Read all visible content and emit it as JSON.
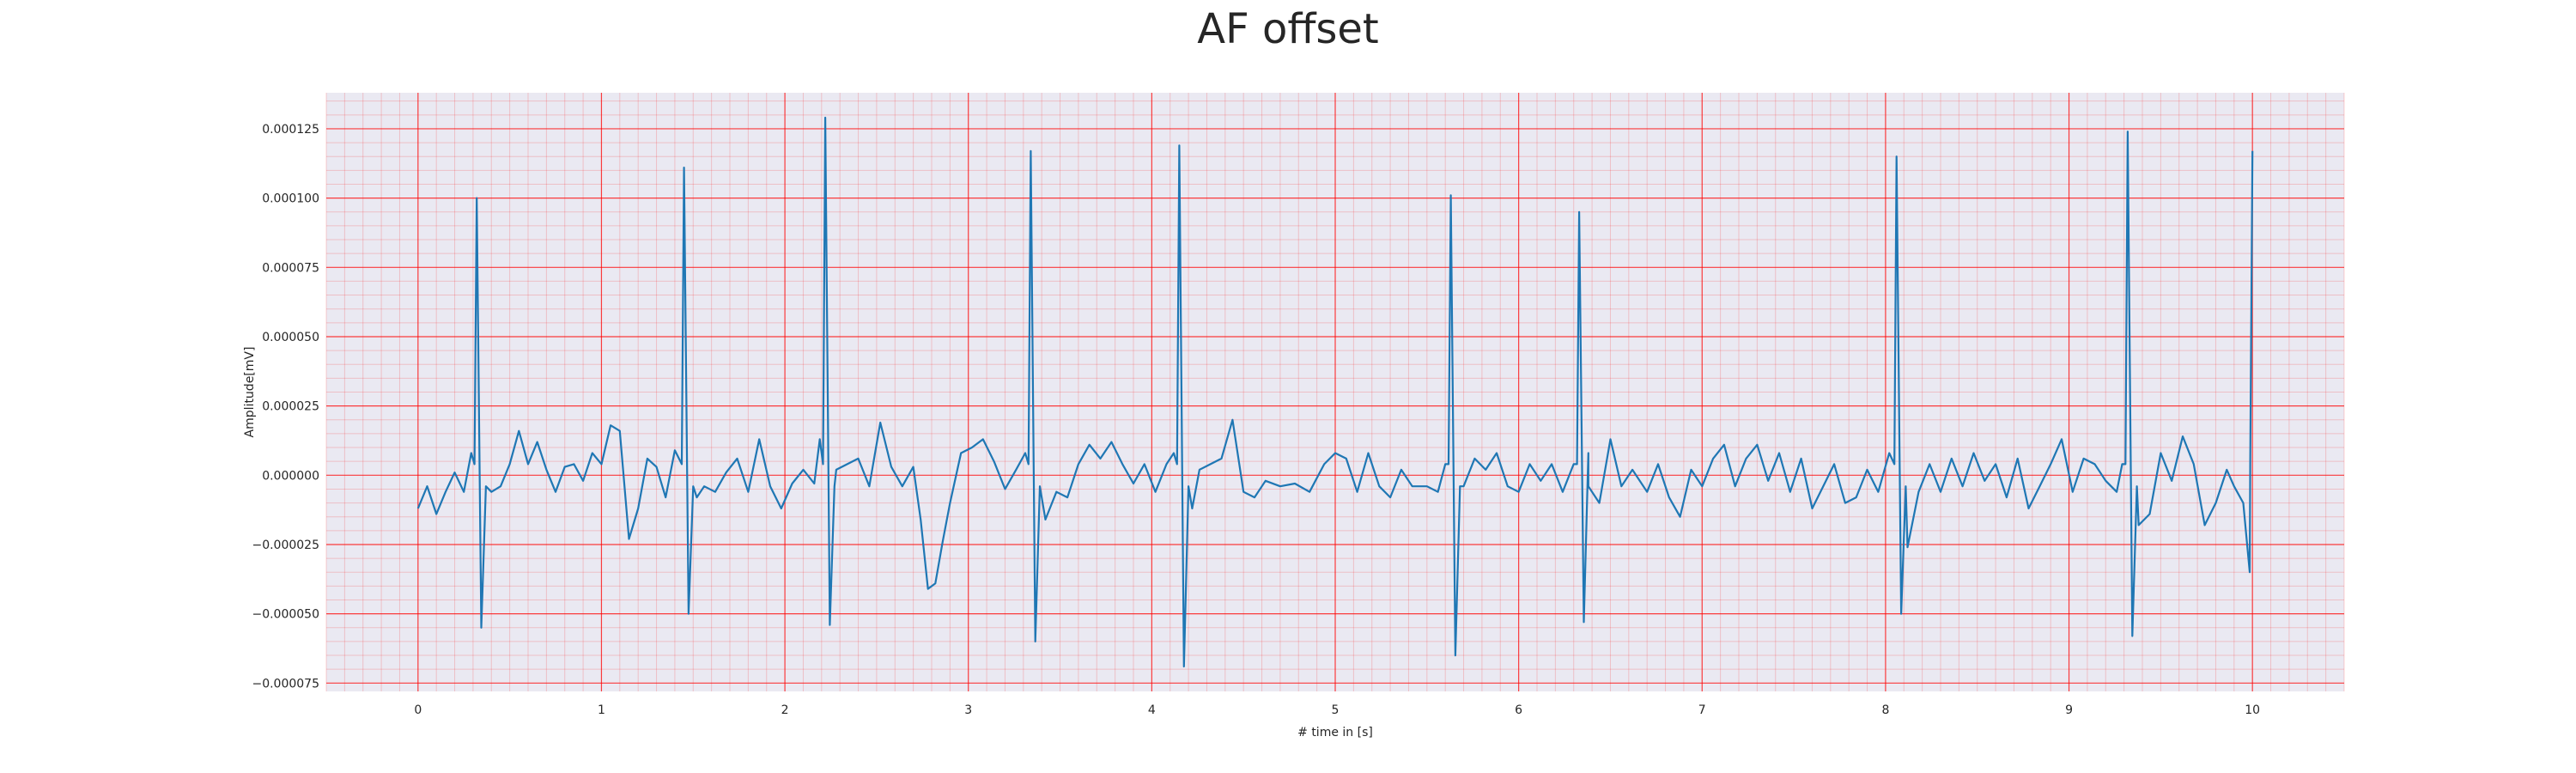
{
  "chart_data": {
    "type": "line",
    "title": "AF offset",
    "xlabel": "# time in [s]",
    "ylabel": "Amplitude[mV]",
    "xlim": [
      -0.5,
      10.5
    ],
    "ylim": [
      -7.8e-05,
      0.000138
    ],
    "x_ticks": [
      0,
      1,
      2,
      3,
      4,
      5,
      6,
      7,
      8,
      9,
      10
    ],
    "x_tick_labels": [
      "0",
      "1",
      "2",
      "3",
      "4",
      "5",
      "6",
      "7",
      "8",
      "9",
      "10"
    ],
    "y_ticks": [
      -7.5e-05,
      -5e-05,
      -2.5e-05,
      0,
      2.5e-05,
      5e-05,
      7.5e-05,
      0.0001,
      0.000125
    ],
    "y_tick_labels": [
      "−0.000075",
      "−0.000050",
      "−0.000025",
      "0.000000",
      "0.000025",
      "0.000050",
      "0.000075",
      "0.000100",
      "0.000125"
    ],
    "grid": true,
    "grid_style": "ECG paper: major and minor red gridlines",
    "line_color": "#1f77b4",
    "plot_background": "#eae9f2",
    "grid_color": "#ff0000",
    "r_peaks": [
      {
        "t": 0.32,
        "peak": 0.0001,
        "trough": -5.5e-05
      },
      {
        "t": 1.45,
        "peak": 0.000111,
        "trough": -5e-05
      },
      {
        "t": 2.22,
        "peak": 0.000129,
        "trough": -5.4e-05
      },
      {
        "t": 3.34,
        "peak": 0.000117,
        "trough": -6e-05
      },
      {
        "t": 4.15,
        "peak": 0.000119,
        "trough": -6.9e-05
      },
      {
        "t": 5.63,
        "peak": 0.000101,
        "trough": -6.5e-05
      },
      {
        "t": 6.33,
        "peak": 9.5e-05,
        "trough": -5.3e-05
      },
      {
        "t": 8.06,
        "peak": 0.000115,
        "trough": -5e-05
      },
      {
        "t": 9.32,
        "peak": 0.000124,
        "trough": -5.8e-05
      },
      {
        "t": 10.0,
        "peak": 0.000117,
        "trough": -3.5e-05
      }
    ],
    "baseline_points": [
      [
        0.0,
        -1.2e-05
      ],
      [
        0.05,
        -4e-06
      ],
      [
        0.1,
        -1.4e-05
      ],
      [
        0.15,
        -6e-06
      ],
      [
        0.2,
        1e-06
      ],
      [
        0.25,
        -6e-06
      ],
      [
        0.29,
        8e-06
      ],
      [
        0.4,
        -6e-06
      ],
      [
        0.45,
        -4e-06
      ],
      [
        0.5,
        4e-06
      ],
      [
        0.55,
        1.6e-05
      ],
      [
        0.6,
        4e-06
      ],
      [
        0.65,
        1.2e-05
      ],
      [
        0.7,
        2e-06
      ],
      [
        0.75,
        -6e-06
      ],
      [
        0.8,
        3e-06
      ],
      [
        0.85,
        4e-06
      ],
      [
        0.9,
        -2e-06
      ],
      [
        0.95,
        8e-06
      ],
      [
        1.0,
        4e-06
      ],
      [
        1.05,
        1.8e-05
      ],
      [
        1.1,
        1.6e-05
      ],
      [
        1.15,
        -2.3e-05
      ],
      [
        1.2,
        -1.2e-05
      ],
      [
        1.25,
        6e-06
      ],
      [
        1.3,
        3e-06
      ],
      [
        1.35,
        -8e-06
      ],
      [
        1.4,
        9e-06
      ],
      [
        1.52,
        -8e-06
      ],
      [
        1.56,
        -4e-06
      ],
      [
        1.62,
        -6e-06
      ],
      [
        1.68,
        1e-06
      ],
      [
        1.74,
        6e-06
      ],
      [
        1.8,
        -6e-06
      ],
      [
        1.86,
        1.3e-05
      ],
      [
        1.92,
        -4e-06
      ],
      [
        1.98,
        -1.2e-05
      ],
      [
        2.04,
        -3e-06
      ],
      [
        2.1,
        2e-06
      ],
      [
        2.16,
        -3e-06
      ],
      [
        2.19,
        1.3e-05
      ],
      [
        2.28,
        2e-06
      ],
      [
        2.34,
        4e-06
      ],
      [
        2.4,
        6e-06
      ],
      [
        2.46,
        -4e-06
      ],
      [
        2.52,
        1.9e-05
      ],
      [
        2.58,
        3e-06
      ],
      [
        2.64,
        -4e-06
      ],
      [
        2.7,
        3e-06
      ],
      [
        2.74,
        -1.6e-05
      ],
      [
        2.78,
        -4.1e-05
      ],
      [
        2.82,
        -3.9e-05
      ],
      [
        2.86,
        -2.4e-05
      ],
      [
        2.9,
        -1e-05
      ],
      [
        2.96,
        8e-06
      ],
      [
        3.02,
        1e-05
      ],
      [
        3.08,
        1.3e-05
      ],
      [
        3.14,
        5e-06
      ],
      [
        3.2,
        -5e-06
      ],
      [
        3.26,
        2e-06
      ],
      [
        3.31,
        8e-06
      ],
      [
        3.42,
        -1.6e-05
      ],
      [
        3.48,
        -6e-06
      ],
      [
        3.54,
        -8e-06
      ],
      [
        3.6,
        4e-06
      ],
      [
        3.66,
        1.1e-05
      ],
      [
        3.72,
        6e-06
      ],
      [
        3.78,
        1.2e-05
      ],
      [
        3.84,
        4e-06
      ],
      [
        3.9,
        -3e-06
      ],
      [
        3.96,
        4e-06
      ],
      [
        4.02,
        -6e-06
      ],
      [
        4.08,
        4e-06
      ],
      [
        4.12,
        8e-06
      ],
      [
        4.22,
        -1.2e-05
      ],
      [
        4.26,
        2e-06
      ],
      [
        4.32,
        4e-06
      ],
      [
        4.38,
        6e-06
      ],
      [
        4.44,
        2e-05
      ],
      [
        4.5,
        -6e-06
      ],
      [
        4.56,
        -8e-06
      ],
      [
        4.62,
        -2e-06
      ],
      [
        4.7,
        -4e-06
      ],
      [
        4.78,
        -3e-06
      ],
      [
        4.86,
        -6e-06
      ],
      [
        4.94,
        4e-06
      ],
      [
        5.0,
        8e-06
      ],
      [
        5.06,
        6e-06
      ],
      [
        5.12,
        -6e-06
      ],
      [
        5.18,
        8e-06
      ],
      [
        5.24,
        -4e-06
      ],
      [
        5.3,
        -8e-06
      ],
      [
        5.36,
        2e-06
      ],
      [
        5.42,
        -4e-06
      ],
      [
        5.5,
        -4e-06
      ],
      [
        5.56,
        -6e-06
      ],
      [
        5.6,
        4e-06
      ],
      [
        5.7,
        -4e-06
      ],
      [
        5.76,
        6e-06
      ],
      [
        5.82,
        2e-06
      ],
      [
        5.88,
        8e-06
      ],
      [
        5.94,
        -4e-06
      ],
      [
        6.0,
        -6e-06
      ],
      [
        6.06,
        4e-06
      ],
      [
        6.12,
        -2e-06
      ],
      [
        6.18,
        4e-06
      ],
      [
        6.24,
        -6e-06
      ],
      [
        6.3,
        4e-06
      ],
      [
        6.38,
        8e-06
      ],
      [
        6.44,
        -1e-05
      ],
      [
        6.5,
        1.3e-05
      ],
      [
        6.56,
        -4e-06
      ],
      [
        6.62,
        2e-06
      ],
      [
        6.7,
        -6e-06
      ],
      [
        6.76,
        4e-06
      ],
      [
        6.82,
        -8e-06
      ],
      [
        6.88,
        -1.5e-05
      ],
      [
        6.94,
        2e-06
      ],
      [
        7.0,
        -4e-06
      ],
      [
        7.06,
        6e-06
      ],
      [
        7.12,
        1.1e-05
      ],
      [
        7.18,
        -4e-06
      ],
      [
        7.24,
        6e-06
      ],
      [
        7.3,
        1.1e-05
      ],
      [
        7.36,
        -2e-06
      ],
      [
        7.42,
        8e-06
      ],
      [
        7.48,
        -6e-06
      ],
      [
        7.54,
        6e-06
      ],
      [
        7.6,
        -1.2e-05
      ],
      [
        7.66,
        -4e-06
      ],
      [
        7.72,
        4e-06
      ],
      [
        7.78,
        -1e-05
      ],
      [
        7.84,
        -8e-06
      ],
      [
        7.9,
        2e-06
      ],
      [
        7.96,
        -6e-06
      ],
      [
        8.02,
        8e-06
      ],
      [
        8.12,
        -2.6e-05
      ],
      [
        8.18,
        -6e-06
      ],
      [
        8.24,
        4e-06
      ],
      [
        8.3,
        -6e-06
      ],
      [
        8.36,
        6e-06
      ],
      [
        8.42,
        -4e-06
      ],
      [
        8.48,
        8e-06
      ],
      [
        8.54,
        -2e-06
      ],
      [
        8.6,
        4e-06
      ],
      [
        8.66,
        -8e-06
      ],
      [
        8.72,
        6e-06
      ],
      [
        8.78,
        -1.2e-05
      ],
      [
        8.84,
        -4e-06
      ],
      [
        8.9,
        4e-06
      ],
      [
        8.96,
        1.3e-05
      ],
      [
        9.02,
        -6e-06
      ],
      [
        9.08,
        6e-06
      ],
      [
        9.14,
        4e-06
      ],
      [
        9.2,
        -2e-06
      ],
      [
        9.26,
        -6e-06
      ],
      [
        9.29,
        4e-06
      ],
      [
        9.38,
        -1.8e-05
      ],
      [
        9.44,
        -1.4e-05
      ],
      [
        9.5,
        8e-06
      ],
      [
        9.56,
        -2e-06
      ],
      [
        9.62,
        1.4e-05
      ],
      [
        9.68,
        4e-06
      ],
      [
        9.74,
        -1.8e-05
      ],
      [
        9.8,
        -1e-05
      ],
      [
        9.86,
        2e-06
      ],
      [
        9.9,
        -4e-06
      ],
      [
        9.95,
        -1e-05
      ]
    ]
  }
}
